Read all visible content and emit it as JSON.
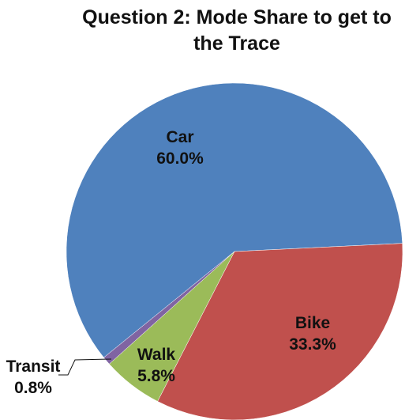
{
  "chart_data": {
    "type": "pie",
    "title": "Question 2: Mode Share to get to the Trace",
    "categories": [
      "Car",
      "Bike",
      "Walk",
      "Transit"
    ],
    "values": [
      60.0,
      33.3,
      5.8,
      0.8
    ],
    "value_labels": [
      "60.0%",
      "33.3%",
      "5.8%",
      "0.8%"
    ],
    "colors": [
      "#4f81bd",
      "#c0504d",
      "#9bbb59",
      "#8064a2"
    ]
  }
}
